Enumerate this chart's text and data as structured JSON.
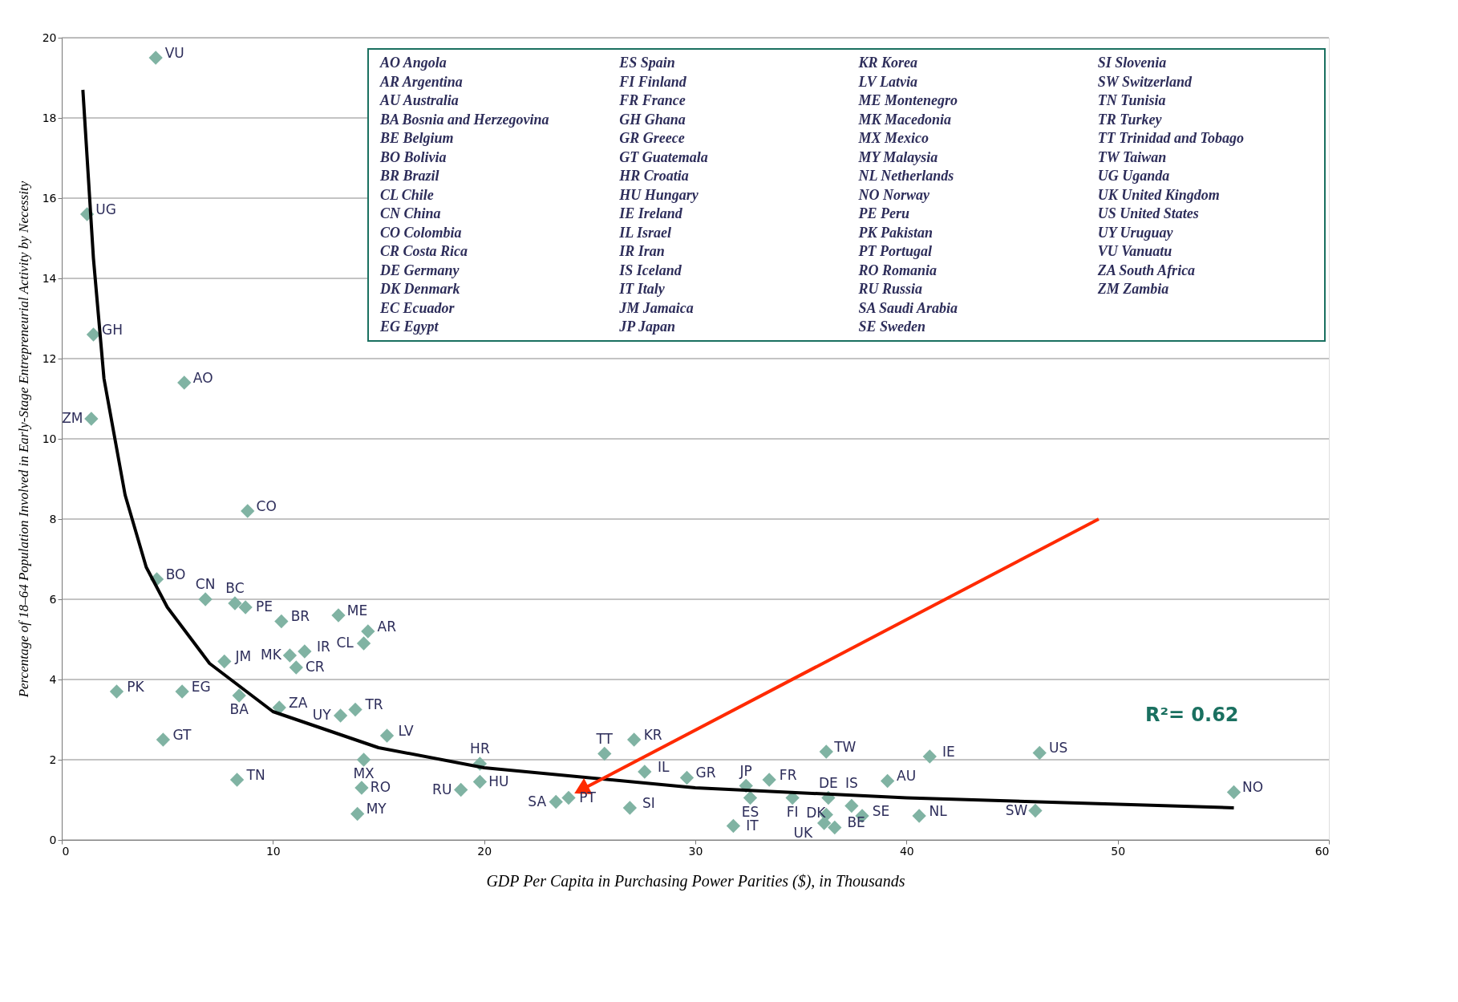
{
  "chart_data": {
    "type": "scatter",
    "xlabel": "GDP Per Capita in Purchasing Power Parities ($), in Thousands",
    "ylabel": "Percentage of 18–64 Population Involved in Early-Stage Entrepreneurial Activity by Necessity",
    "xlim": [
      0,
      60
    ],
    "ylim": [
      0,
      20
    ],
    "xticks": [
      0,
      10,
      20,
      30,
      40,
      50,
      60
    ],
    "yticks": [
      0,
      2,
      4,
      6,
      8,
      10,
      12,
      14,
      16,
      18,
      20
    ],
    "grid": "y",
    "marker": "diamond",
    "series": [
      {
        "color": "#80b3a3",
        "x": [
          4.45,
          1.2,
          1.5,
          5.8,
          1.4,
          8.8,
          4.5,
          6.8,
          8.2,
          8.7,
          10.4,
          13.1,
          14.5,
          14.3,
          7.7,
          10.8,
          11.5,
          11.1,
          2.6,
          5.7,
          8.4,
          10.3,
          13.2,
          13.9,
          15.4,
          4.8,
          14.3,
          8.3,
          14.2,
          14.0,
          19.8,
          18.9,
          19.8,
          23.4,
          24.0,
          26.9,
          25.7,
          27.1,
          27.6,
          29.6,
          32.4,
          32.6,
          31.8,
          33.5,
          34.6,
          36.3,
          36.2,
          36.1,
          36.6,
          37.4,
          37.9,
          36.2,
          41.1,
          39.1,
          40.6,
          46.3,
          46.1,
          55.5
        ],
        "values": [
          19.5,
          15.6,
          12.6,
          11.4,
          10.5,
          8.2,
          6.5,
          6.0,
          5.9,
          5.8,
          5.45,
          5.6,
          5.2,
          4.9,
          4.45,
          4.6,
          4.7,
          4.3,
          3.7,
          3.7,
          3.6,
          3.3,
          3.1,
          3.25,
          2.6,
          2.5,
          2.0,
          1.5,
          1.3,
          0.65,
          1.9,
          1.25,
          1.45,
          0.95,
          1.05,
          0.8,
          2.15,
          2.5,
          1.7,
          1.55,
          1.35,
          1.05,
          0.35,
          1.5,
          1.05,
          1.05,
          0.63,
          0.42,
          0.31,
          0.85,
          0.6,
          2.2,
          2.08,
          1.47,
          0.6,
          2.17,
          0.73,
          1.19
        ],
        "value_labels": [
          "VU",
          "UG",
          "GH",
          "AO",
          "ZM",
          "CO",
          "BO",
          "CN",
          "BC",
          "PE",
          "BR",
          "ME",
          "AR",
          "CL",
          "JM",
          "MK",
          "IR",
          "CR",
          "PK",
          "EG",
          "BA",
          "ZA",
          "UY",
          "TR",
          "LV",
          "GT",
          "MX",
          "TN",
          "RO",
          "MY",
          "HR",
          "RU",
          "HU",
          "SA",
          "PT",
          "SI",
          "TT",
          "KR",
          "IL",
          "GR",
          "JP",
          "ES",
          "IT",
          "FR",
          "FI",
          "DE",
          "UK",
          "BE",
          "DK",
          "IS",
          "SE",
          "TW",
          "IE",
          "AU",
          "NL",
          "US",
          "SW",
          "NO"
        ]
      },
      {
        "type": "line",
        "color": "#000000",
        "marker": "none",
        "line_style": "solid",
        "x": [
          1,
          1.5,
          2,
          3,
          4,
          5,
          7,
          10,
          15,
          20,
          30,
          40,
          55.5
        ],
        "values": [
          18.7,
          14.5,
          11.5,
          8.6,
          6.8,
          5.8,
          4.4,
          3.2,
          2.3,
          1.8,
          1.3,
          1.05,
          0.8
        ]
      },
      {
        "type": "line",
        "color": "#ff2a00",
        "marker": "triangle",
        "line_style": "solid",
        "x": [
          49.1,
          24.6
        ],
        "values": [
          8.0,
          1.25
        ]
      }
    ],
    "annotations": [
      "R²= 0.62",
      "AO  Angola\nAR  Argentina\nAU  Australia\nBA  Bosnia and Herzegovina\nBE  Belgium\nBO  Bolivia\nBR  Brazil\nCL  Chile\nCN  China\nCO  Colombia\nCR  Costa Rica\nDE  Germany\nDK  Denmark\nEC  Ecuador\nEG  Egypt",
      "ES  Spain\nFI  Finland\nFR  France\nGH  Ghana\nGR  Greece\nGT  Guatemala\nHR  Croatia\nHU  Hungary\nIE  Ireland\nIL  Israel\nIR  Iran\nIS  Iceland\nIT  Italy\nJM  Jamaica\nJP  Japan",
      "KR  Korea\nLV  Latvia\nME  Montenegro\nMK  Macedonia\nMX  Mexico\nMY  Malaysia\nNL  Netherlands\nNO  Norway\nPE  Peru\nPK  Pakistan\nPT  Portugal\nRO  Romania\nRU  Russia\nSA  Saudi Arabia\nSE  Sweden",
      "SI  Slovenia\nSW  Switzerland\nTN  Tunisia\nTR  Turkey\nTT  Trinidad and Tobago\nTW  Taiwan\nUG  Uganda\nUK  United Kingdom\nUS  United States\nUY  Uruguay\nVU  Vanuatu\nZA  South Africa\nZM  Zambia"
    ]
  }
}
